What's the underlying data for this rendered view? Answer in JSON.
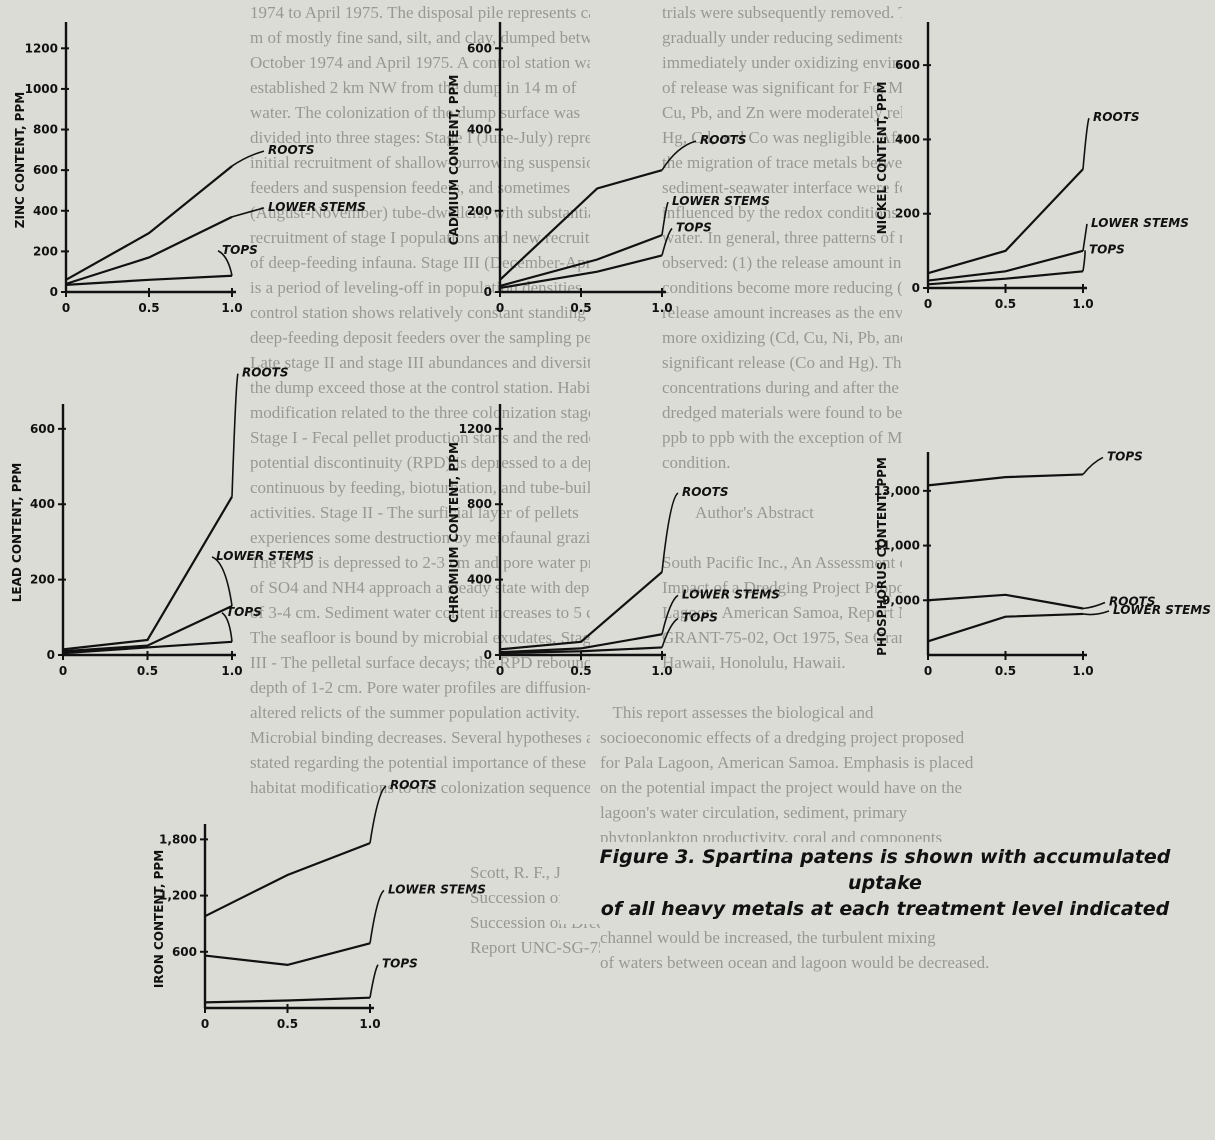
{
  "background_text": {
    "left_column": "1974 to April 1975. The disposal pile represents ca 10\nm of mostly fine sand, silt, and clay, dumped between\nOctober 1974 and April 1975. A control station was\nestablished 2 km NW from the dump in 14 m of\nwater. The colonization of the dump surface was\ndivided into three stages: Stage I (June-July) represents\ninitial recruitment of shallow-burrowing suspension\nfeeders and suspension feeders, and sometimes\n(August-November) tube-dwellers, with substantial\nrecruitment of stage I populations and new recruitment\nof deep-feeding infauna. Stage III (December-April)\nis a period of leveling-off in population densities. The\ncontrol station shows relatively constant standing crops of\ndeep-feeding deposit feeders over the sampling period.\nLate stage II and stage III abundances and diversities on\nthe dump exceed those at the control station. Habitat\nmodification related to the three colonization stages are:\nStage I - Fecal pellet production starts and the redox\npotential discontinuity (RPD) is depressed to a depth\ncontinuous by feeding, bioturbation, and tube-building\nactivities. Stage II - The surficial layer of pellets\nexperiences some destruction by meiofaunal grazing.\nThe RPD is depressed to 2-3 cm and pore water profiles\nof SO4 and NH4 approach a steady state with depth\nof 3-4 cm. Sediment water content increases to 5 cm.\nThe seafloor is bound by microbial exudates. Stage\nIII - The pelletal surface decays; the RPD rebounds to a\ndepth of 1-2 cm. Pore water profiles are diffusion-\naltered relicts of the summer population activity.\nMicrobial binding decreases. Several hypotheses are\nstated regarding the potential importance of these\nhabitat modifications to the colonization sequence.",
    "right_column": "trials were subsequently removed. The removal is\ngradually under reducing sediments and almost\nimmediately under oxidizing environments. The degree\nof release was significant for Fe, Mn, and Ni. The Cr,\nCu, Pb, and Zn were moderately released. The release of\nHg, Cd, and Co was negligible. After resedimentation\nthe migration of trace metals between the\nsediment-seawater interface were found to be\ninfluenced by the redox conditions of the overlying\nwater. In general, three patterns of metal behavior were\nobserved: (1) the release amount increases as the redox\nconditions become more reducing (Fe and Mn); (2) the\nrelease amount increases as the environment becomes\nmore oxidizing (Cd, Cu, Ni, Pb, and Zn); and (3) no\nsignificant release (Co and Hg). The soluble metal\nconcentrations during and after the water disposal of\ndredged materials were found to be in the range of sub-\nppb to ppb with the exception of Mn under reducing\ncondition.\n\n        Author's Abstract\n\nSouth Pacific Inc., An Assessment of the Proposed\nImpact of a Dredging Project Proposed for Pala\nLagoon, American Samoa, Report No. UNIHI-SEA\nGRANT-75-02, Oct 1975, Sea Grant Program, University of\nHawaii, Honolulu, Hawaii.",
    "bottom_right": "   This report assesses the biological and\nsocioeconomic effects of a dredging project proposed\nfor Pala Lagoon, American Samoa. Emphasis is placed\non the potential impact the project would have on the\nlagoon's water circulation, sediment, primary\nphytoplankton productivity, coral and components\nand fishes of Pala Lagoon. The data collected for the\nreport indicate that dredging would remove an existing\nsill and, although the volume flow through the entrance\nchannel would be increased, the turbulent mixing\nof waters between ocean and lagoon would be decreased.",
    "bottom_left": "Scott, R. F., Jr., and Parnell, J. F., \"Ecological\nSuccession of Breeding Birds in Relation to Plant\nSuccession on Dredge Islands in North Carolina,\"\nReport UNC-SG-75-27, Dec 1975, University of North"
  },
  "caption": {
    "line1": "Figure 3. Spartina patens is shown with accumulated uptake",
    "line2": "of all heavy metals at each treatment level indicated"
  },
  "chart_data": [
    {
      "id": "zinc",
      "type": "line",
      "ylabel": "ZINC CONTENT, PPM",
      "ylim": [
        0,
        1300
      ],
      "yticks": [
        0,
        200,
        400,
        600,
        800,
        1000,
        1200
      ],
      "ytick_labels": [
        "0",
        "200",
        "400",
        "600",
        "800",
        "1000",
        "1200"
      ],
      "xlim": [
        0,
        1.0
      ],
      "xticks": [
        0,
        0.5,
        1.0
      ],
      "xtick_labels": [
        "0",
        "0.5",
        "1.0"
      ],
      "x": [
        0,
        0.5,
        1.0
      ],
      "series": [
        {
          "name": "ROOTS",
          "values": [
            60,
            290,
            620
          ]
        },
        {
          "name": "LOWER STEMS",
          "values": [
            40,
            170,
            370
          ]
        },
        {
          "name": "TOPS",
          "values": [
            35,
            60,
            80
          ]
        }
      ]
    },
    {
      "id": "cadmium",
      "type": "line",
      "ylabel": "CADMIUM CONTENT, PPM",
      "ylim": [
        0,
        650
      ],
      "yticks": [
        0,
        200,
        400,
        600
      ],
      "ytick_labels": [
        "0",
        "200",
        "400",
        "600"
      ],
      "xlim": [
        0,
        1.0
      ],
      "xticks": [
        0,
        0.5,
        1.0
      ],
      "xtick_labels": [
        "0",
        "0.5",
        "1.0"
      ],
      "x": [
        0,
        0.6,
        1.0
      ],
      "series": [
        {
          "name": "ROOTS",
          "values": [
            30,
            255,
            300
          ]
        },
        {
          "name": "LOWER STEMS",
          "values": [
            15,
            80,
            140
          ]
        },
        {
          "name": "TOPS",
          "values": [
            10,
            50,
            90
          ]
        }
      ]
    },
    {
      "id": "nickel",
      "type": "line",
      "ylabel": "NICKEL CONTENT, PPM",
      "ylim": [
        0,
        700
      ],
      "yticks": [
        0,
        200,
        400,
        600
      ],
      "ytick_labels": [
        "0",
        "200",
        "400",
        "600"
      ],
      "xlim": [
        0,
        1.0
      ],
      "xticks": [
        0,
        0.5,
        1.0
      ],
      "xtick_labels": [
        "0",
        "0.5",
        "1.0"
      ],
      "x": [
        0,
        0.5,
        1.0
      ],
      "series": [
        {
          "name": "ROOTS",
          "values": [
            40,
            100,
            320
          ]
        },
        {
          "name": "LOWER STEMS",
          "values": [
            20,
            45,
            100
          ]
        },
        {
          "name": "TOPS",
          "values": [
            10,
            25,
            45
          ]
        }
      ]
    },
    {
      "id": "lead",
      "type": "line",
      "ylabel": "LEAD CONTENT, PPM",
      "ylim": [
        0,
        650
      ],
      "yticks": [
        0,
        200,
        400,
        600
      ],
      "ytick_labels": [
        "0",
        "200",
        "400",
        "600"
      ],
      "xlim": [
        0,
        1.0
      ],
      "xticks": [
        0,
        0.5,
        1.0
      ],
      "xtick_labels": [
        "0",
        "0.5",
        "1.0"
      ],
      "x": [
        0,
        0.5,
        1.0
      ],
      "series": [
        {
          "name": "ROOTS",
          "values": [
            15,
            40,
            420
          ]
        },
        {
          "name": "LOWER STEMS",
          "values": [
            10,
            25,
            130
          ]
        },
        {
          "name": "TOPS",
          "values": [
            5,
            20,
            35
          ]
        }
      ]
    },
    {
      "id": "chromium",
      "type": "line",
      "ylabel": "CHROMIUM CONTENT, PPM",
      "ylim": [
        0,
        1300
      ],
      "yticks": [
        0,
        400,
        800,
        1200
      ],
      "ytick_labels": [
        "0",
        "400",
        "800",
        "1200"
      ],
      "xlim": [
        0,
        1.0
      ],
      "xticks": [
        0,
        0.5,
        1.0
      ],
      "xtick_labels": [
        "0",
        "0.5",
        "1.0"
      ],
      "x": [
        0,
        0.5,
        1.0
      ],
      "series": [
        {
          "name": "ROOTS",
          "values": [
            30,
            70,
            440
          ]
        },
        {
          "name": "LOWER STEMS",
          "values": [
            15,
            35,
            110
          ]
        },
        {
          "name": "TOPS",
          "values": [
            10,
            20,
            40
          ]
        }
      ]
    },
    {
      "id": "phosphorus",
      "type": "line",
      "ylabel": "PHOSPHORUS CONTENT, PPM",
      "ylim": [
        7000,
        14200
      ],
      "yticks": [
        9000,
        11000,
        13000
      ],
      "ytick_labels": [
        "9,000",
        "11,000",
        "13,000"
      ],
      "xlim": [
        0,
        1.0
      ],
      "xticks": [
        0,
        0.5,
        1.0
      ],
      "xtick_labels": [
        "0",
        "0.5",
        "1.0"
      ],
      "x": [
        0,
        0.5,
        1.0
      ],
      "series": [
        {
          "name": "TOPS",
          "values": [
            13200,
            13500,
            13600
          ]
        },
        {
          "name": "ROOTS",
          "values": [
            9000,
            9200,
            8700
          ]
        },
        {
          "name": "LOWER STEMS",
          "values": [
            7500,
            8400,
            8500
          ]
        }
      ]
    },
    {
      "id": "iron",
      "type": "line",
      "ylabel": "IRON CONTENT, PPM",
      "ylim": [
        0,
        1900
      ],
      "yticks": [
        600,
        1200,
        1800
      ],
      "ytick_labels": [
        "600",
        "1,200",
        "1,800"
      ],
      "xlim": [
        0,
        1.0
      ],
      "xticks": [
        0,
        0.5,
        1.0
      ],
      "xtick_labels": [
        "0",
        "0.5",
        "1.0"
      ],
      "x": [
        0,
        0.5,
        1.0
      ],
      "series": [
        {
          "name": "ROOTS",
          "values": [
            980,
            1420,
            1760
          ]
        },
        {
          "name": "LOWER STEMS",
          "values": [
            560,
            460,
            690
          ]
        },
        {
          "name": "TOPS",
          "values": [
            60,
            80,
            110
          ]
        }
      ]
    }
  ]
}
